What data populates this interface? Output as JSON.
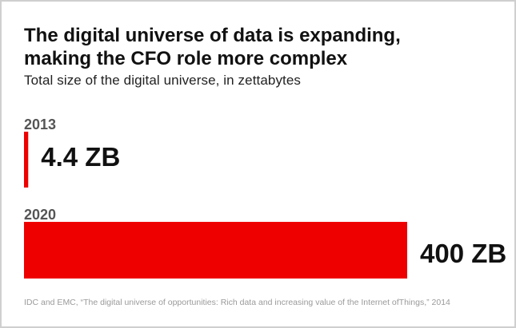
{
  "chart_data": {
    "type": "bar",
    "orientation": "horizontal",
    "title_lines": [
      "The digital universe of data is expanding,",
      "making the CFO role more complex"
    ],
    "subtitle": "Total size of the digital universe, in zettabytes",
    "categories": [
      "2013",
      "2020"
    ],
    "values": [
      4.4,
      400
    ],
    "data_labels": [
      "4.4 ZB",
      "400 ZB"
    ],
    "unit": "zettabytes",
    "xlim": [
      0,
      400
    ],
    "grid": false,
    "bar_color": "#ee0000",
    "category_label_color": "#555555",
    "value_label_color": "#111111"
  },
  "source": "IDC and EMC, “The digital universe of opportunities: Rich data and increasing value of the Internet ofThings,” 2014"
}
